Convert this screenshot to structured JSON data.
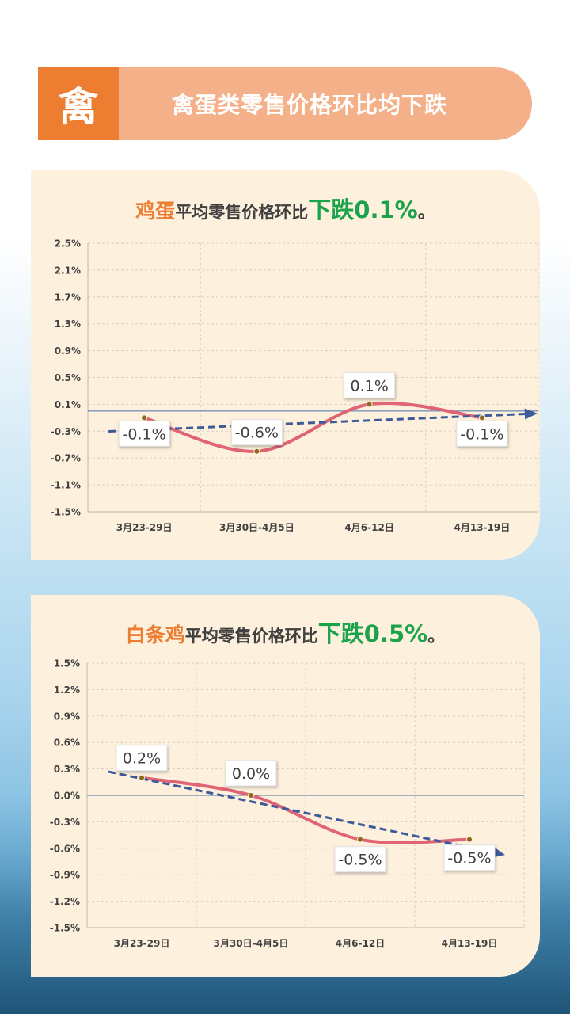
{
  "banner": {
    "icon_char": "禽",
    "title": "禽蛋类零售价格环比均下跌"
  },
  "colors": {
    "banner_dark": "#ec7d31",
    "banner_light": "#f4b088",
    "card_bg": "#fdf0dd",
    "curve": "#e06474",
    "trend": "#3d5a99",
    "highlight_green": "#1aa34a",
    "item_orange": "#ec7d31"
  },
  "cards": [
    {
      "title": {
        "item": "鸡蛋",
        "middle": "平均零售价格环比",
        "change": "下跌0.1%",
        "tail": "。"
      },
      "chart_data": {
        "type": "line",
        "categories": [
          "3月23-29日",
          "3月30日-4月5日",
          "4月6-12日",
          "4月13-19日"
        ],
        "values": [
          -0.1,
          -0.6,
          0.1,
          -0.1
        ],
        "data_labels": [
          "-0.1%",
          "-0.6%",
          "0.1%",
          "-0.1%"
        ],
        "y_ticks": [
          "2.5%",
          "2.1%",
          "1.7%",
          "1.3%",
          "0.9%",
          "0.5%",
          "0.1%",
          "-0.3%",
          "-0.7%",
          "-1.1%",
          "-1.5%"
        ],
        "ylim": [
          -1.5,
          2.5
        ],
        "trendline": "linear",
        "grid": true,
        "legend": "none"
      }
    },
    {
      "title": {
        "item": "白条鸡",
        "middle": "平均零售价格环比",
        "change": "下跌0.5%",
        "tail": "。"
      },
      "chart_data": {
        "type": "line",
        "categories": [
          "3月23-29日",
          "3月30日-4月5日",
          "4月6-12日",
          "4月13-19日"
        ],
        "values": [
          0.2,
          0.0,
          -0.5,
          -0.5
        ],
        "data_labels": [
          "0.2%",
          "0.0%",
          "-0.5%",
          "-0.5%"
        ],
        "y_ticks": [
          "1.5%",
          "1.2%",
          "0.9%",
          "0.6%",
          "0.3%",
          "0.0%",
          "-0.3%",
          "-0.6%",
          "-0.9%",
          "-1.2%",
          "-1.5%"
        ],
        "ylim": [
          -1.5,
          1.5
        ],
        "trendline": "linear",
        "grid": true,
        "legend": "none"
      }
    }
  ]
}
